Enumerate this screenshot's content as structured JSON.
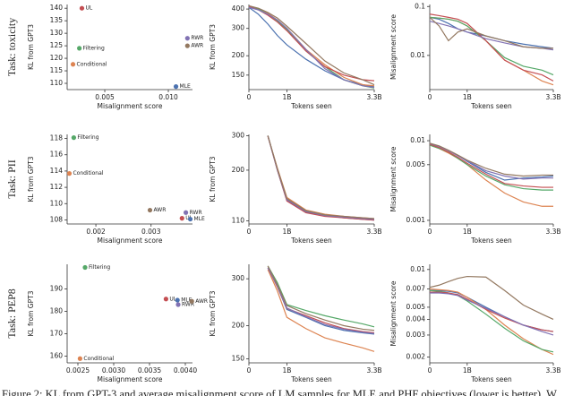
{
  "row_labels": [
    "Task: toxicity",
    "Task: PII",
    "Task: PEP8"
  ],
  "caption": "Figure 2: KL from GPT-3 and average misalignment score of LM samples for MLE and PHF objectives (lower is better). W",
  "chart_data": [
    {
      "type": "scatter",
      "xlabel": "Misalignment score",
      "ylabel": "KL from GPT3",
      "xlim": [
        0.00204,
        0.0119
      ],
      "ylim": [
        107.5,
        141.5
      ],
      "xticks": [
        0.005,
        {
          "value": 0.01,
          "label": "0.010"
        }
      ],
      "yticks": [
        110,
        115,
        120,
        125,
        130,
        135,
        140
      ],
      "series": [
        {
          "name": "UL",
          "color": "#c44e52",
          "x": [
            0.0032
          ],
          "values": [
            140
          ]
        },
        {
          "name": "Filtering",
          "color": "#55a868",
          "x": [
            0.003
          ],
          "values": [
            124
          ]
        },
        {
          "name": "Conditional",
          "color": "#dd8452",
          "x": [
            0.0025
          ],
          "values": [
            117.6
          ]
        },
        {
          "name": "RWR",
          "color": "#8172b3",
          "x": [
            0.0115
          ],
          "values": [
            128
          ]
        },
        {
          "name": "AWR",
          "color": "#937860",
          "x": [
            0.0115
          ],
          "values": [
            125
          ]
        },
        {
          "name": "MLE",
          "color": "#4c72b0",
          "x": [
            0.0106
          ],
          "values": [
            108.7
          ]
        }
      ]
    },
    {
      "type": "line",
      "xlabel": "Tokens seen",
      "ylabel": "KL from GPT3",
      "log_y": true,
      "x": [
        0,
        0.25,
        0.5,
        0.75,
        1,
        1.5,
        2,
        2.5,
        3,
        3.3
      ],
      "xlim": [
        0,
        3.3
      ],
      "ylim": [
        121,
        428
      ],
      "xticks": [
        0,
        {
          "value": 1,
          "label": "1B"
        },
        {
          "value": 3.3,
          "label": "3.3B"
        }
      ],
      "yticks": [
        150,
        200,
        300,
        400
      ],
      "series": [
        {
          "color": "#4c72b0",
          "values": [
            410,
            370,
            320,
            270,
            235,
            190,
            160,
            140,
            130,
            126
          ]
        },
        {
          "color": "#dd8452",
          "values": [
            415,
            400,
            375,
            340,
            300,
            220,
            175,
            145,
            130,
            128
          ]
        },
        {
          "color": "#55a868",
          "values": [
            415,
            400,
            370,
            335,
            295,
            215,
            170,
            140,
            128,
            124
          ]
        },
        {
          "color": "#c44e52",
          "values": [
            415,
            395,
            365,
            330,
            290,
            215,
            170,
            150,
            140,
            138
          ]
        },
        {
          "color": "#8172b3",
          "values": [
            410,
            395,
            370,
            340,
            300,
            220,
            165,
            140,
            128,
            125
          ]
        },
        {
          "color": "#937860",
          "values": [
            420,
            405,
            380,
            350,
            310,
            240,
            185,
            155,
            140,
            130
          ]
        }
      ]
    },
    {
      "type": "line",
      "xlabel": "Tokens seen",
      "ylabel": "Misalignment score",
      "log_y": true,
      "x": [
        0,
        0.25,
        0.5,
        0.75,
        1,
        1.5,
        2,
        2.5,
        3,
        3.3
      ],
      "xlim": [
        0,
        3.3
      ],
      "ylim": [
        0.002,
        0.11
      ],
      "xticks": [
        0,
        {
          "value": 1,
          "label": "1B"
        },
        {
          "value": 3.3,
          "label": "3.3B"
        }
      ],
      "yticks": [
        0.1,
        0.01
      ],
      "series": [
        {
          "color": "#4c72b0",
          "values": [
            0.06,
            0.055,
            0.045,
            0.035,
            0.03,
            0.025,
            0.02,
            0.017,
            0.015,
            0.014
          ]
        },
        {
          "color": "#dd8452",
          "values": [
            0.06,
            0.058,
            0.055,
            0.05,
            0.04,
            0.02,
            0.008,
            0.005,
            0.003,
            0.0025
          ]
        },
        {
          "color": "#55a868",
          "values": [
            0.06,
            0.058,
            0.055,
            0.05,
            0.04,
            0.02,
            0.009,
            0.006,
            0.005,
            0.004
          ]
        },
        {
          "color": "#c44e52",
          "values": [
            0.07,
            0.065,
            0.06,
            0.055,
            0.045,
            0.02,
            0.008,
            0.005,
            0.004,
            0.003
          ]
        },
        {
          "color": "#8172b3",
          "values": [
            0.05,
            0.045,
            0.04,
            0.035,
            0.03,
            0.022,
            0.018,
            0.015,
            0.014,
            0.013
          ]
        },
        {
          "color": "#937860",
          "values": [
            0.06,
            0.04,
            0.02,
            0.03,
            0.035,
            0.025,
            0.02,
            0.015,
            0.014,
            0.014
          ]
        }
      ]
    },
    {
      "type": "scatter",
      "xlabel": "Misalignment score",
      "ylabel": "KL from GPT3",
      "xlim": [
        0.00148,
        0.00375
      ],
      "ylim": [
        107.5,
        118.5
      ],
      "xticks": [
        0.002,
        0.003
      ],
      "yticks": [
        108,
        110,
        112,
        114,
        116,
        118
      ],
      "series": [
        {
          "name": "Filtering",
          "color": "#55a868",
          "x": [
            0.0016
          ],
          "values": [
            118.1
          ]
        },
        {
          "name": "Conditional",
          "color": "#dd8452",
          "x": [
            0.00152
          ],
          "values": [
            113.7
          ]
        },
        {
          "name": "AWR",
          "color": "#937860",
          "x": [
            0.00298
          ],
          "values": [
            109.2
          ]
        },
        {
          "name": "RWR",
          "color": "#8172b3",
          "x": [
            0.00363
          ],
          "values": [
            108.9
          ]
        },
        {
          "name": "UL",
          "color": "#c44e52",
          "x": [
            0.00356
          ],
          "values": [
            108.2
          ]
        },
        {
          "name": "MLE",
          "color": "#4c72b0",
          "x": [
            0.00371
          ],
          "values": [
            108.1
          ]
        }
      ]
    },
    {
      "type": "line",
      "xlabel": "Tokens seen",
      "ylabel": "KL from GPT3",
      "log_y": true,
      "x": [
        0,
        0.25,
        0.5,
        0.75,
        1,
        1.5,
        2,
        2.5,
        3,
        3.3
      ],
      "xlim": [
        0,
        3.3
      ],
      "ylim": [
        106,
        305
      ],
      "xticks": [
        0,
        {
          "value": 1,
          "label": "1B"
        },
        {
          "value": 3.3,
          "label": "3.3B"
        }
      ],
      "yticks": [
        110,
        200,
        300
      ],
      "series": [
        {
          "color": "#4c72b0",
          "values": [
            null,
            null,
            300,
            200,
            140,
            122,
            117,
            114,
            112,
            111
          ]
        },
        {
          "color": "#dd8452",
          "values": [
            null,
            null,
            298,
            205,
            145,
            125,
            119,
            116,
            114,
            113
          ]
        },
        {
          "color": "#55a868",
          "values": [
            null,
            null,
            300,
            202,
            142,
            124,
            118,
            115,
            113,
            112
          ]
        },
        {
          "color": "#c44e52",
          "values": [
            null,
            null,
            299,
            200,
            139,
            121,
            116,
            114,
            112,
            111
          ]
        },
        {
          "color": "#8172b3",
          "values": [
            null,
            null,
            300,
            201,
            141,
            123,
            117,
            115,
            113,
            112
          ]
        },
        {
          "color": "#937860",
          "values": [
            null,
            null,
            301,
            203,
            143,
            124,
            118,
            116,
            114,
            113
          ]
        }
      ]
    },
    {
      "type": "line",
      "xlabel": "Tokens seen",
      "ylabel": "Misalignment score",
      "log_y": true,
      "x": [
        0,
        0.25,
        0.5,
        0.75,
        1,
        1.5,
        2,
        2.5,
        3,
        3.3
      ],
      "xlim": [
        0,
        3.3
      ],
      "ylim": [
        0.0009,
        0.012
      ],
      "xticks": [
        0,
        {
          "value": 1,
          "label": "1B"
        },
        {
          "value": 3.3,
          "label": "3.3B"
        }
      ],
      "yticks": [
        0.001,
        0.005,
        0.01
      ],
      "series": [
        {
          "color": "#4c72b0",
          "values": [
            0.0092,
            0.0085,
            0.0075,
            0.0065,
            0.0055,
            0.004,
            0.0032,
            0.0034,
            0.0035,
            0.0036
          ]
        },
        {
          "color": "#dd8452",
          "values": [
            0.0088,
            0.008,
            0.007,
            0.006,
            0.005,
            0.0032,
            0.0022,
            0.0017,
            0.0015,
            0.0015
          ]
        },
        {
          "color": "#55a868",
          "values": [
            0.0088,
            0.008,
            0.0072,
            0.006,
            0.005,
            0.0036,
            0.0028,
            0.0025,
            0.0024,
            0.0024
          ]
        },
        {
          "color": "#c44e52",
          "values": [
            0.009,
            0.0082,
            0.0072,
            0.0062,
            0.0052,
            0.0038,
            0.0029,
            0.0027,
            0.0026,
            0.0026
          ]
        },
        {
          "color": "#8172b3",
          "values": [
            0.0092,
            0.0085,
            0.0075,
            0.0065,
            0.0056,
            0.0042,
            0.0036,
            0.0033,
            0.0034,
            0.0034
          ]
        },
        {
          "color": "#937860",
          "values": [
            0.0093,
            0.0086,
            0.0076,
            0.0066,
            0.0057,
            0.0045,
            0.0038,
            0.0036,
            0.0037,
            0.0037
          ]
        }
      ]
    },
    {
      "type": "scatter",
      "xlabel": "Misalignment score",
      "ylabel": "KL from GPT3",
      "xlim": [
        0.00235,
        0.0041
      ],
      "ylim": [
        157,
        201
      ],
      "xticks": [
        0.0025,
        {
          "value": 0.003,
          "label": "0.0030"
        },
        0.0035,
        {
          "value": 0.004,
          "label": "0.0040"
        }
      ],
      "yticks": [
        160,
        170,
        180,
        190
      ],
      "series": [
        {
          "name": "Filtering",
          "color": "#55a868",
          "x": [
            0.0026
          ],
          "values": [
            199.6
          ]
        },
        {
          "name": "Conditional",
          "color": "#dd8452",
          "x": [
            0.00253
          ],
          "values": [
            158.9
          ]
        },
        {
          "name": "UL",
          "color": "#c44e52",
          "x": [
            0.00373
          ],
          "values": [
            185.5
          ]
        },
        {
          "name": "MLE",
          "color": "#4c72b0",
          "x": [
            0.00389
          ],
          "values": [
            185
          ]
        },
        {
          "name": "RWR",
          "color": "#8172b3",
          "x": [
            0.0039
          ],
          "values": [
            183
          ]
        },
        {
          "name": "AWR",
          "color": "#937860",
          "x": [
            0.00409
          ],
          "values": [
            184.5
          ]
        }
      ]
    },
    {
      "type": "line",
      "xlabel": "Tokens seen",
      "ylabel": "KL from GPT3",
      "log_y": true,
      "x": [
        0,
        0.25,
        0.5,
        0.75,
        1,
        1.5,
        2,
        2.5,
        3,
        3.3
      ],
      "xlim": [
        0,
        3.3
      ],
      "ylim": [
        145,
        340
      ],
      "xticks": [
        0,
        {
          "value": 1,
          "label": "1B"
        },
        {
          "value": 3.3,
          "label": "3.3B"
        }
      ],
      "yticks": [
        150,
        200,
        300
      ],
      "series": [
        {
          "color": "#4c72b0",
          "values": [
            null,
            null,
            330,
            280,
            230,
            215,
            200,
            192,
            188,
            186
          ]
        },
        {
          "color": "#dd8452",
          "values": [
            null,
            null,
            325,
            270,
            215,
            195,
            180,
            172,
            165,
            160
          ]
        },
        {
          "color": "#55a868",
          "values": [
            null,
            null,
            335,
            290,
            240,
            228,
            218,
            210,
            203,
            198
          ]
        },
        {
          "color": "#c44e52",
          "values": [
            null,
            null,
            330,
            280,
            232,
            218,
            205,
            195,
            190,
            188
          ]
        },
        {
          "color": "#8172b3",
          "values": [
            null,
            null,
            330,
            282,
            233,
            216,
            202,
            194,
            189,
            187
          ]
        },
        {
          "color": "#937860",
          "values": [
            null,
            null,
            335,
            285,
            238,
            222,
            210,
            200,
            194,
            192
          ]
        }
      ]
    },
    {
      "type": "line",
      "xlabel": "Tokens seen",
      "ylabel": "Misalignment score",
      "log_y": true,
      "x": [
        0,
        0.25,
        0.5,
        0.75,
        1,
        1.5,
        2,
        2.5,
        3,
        3.3
      ],
      "xlim": [
        0,
        3.3
      ],
      "ylim": [
        0.0018,
        0.011
      ],
      "xticks": [
        0,
        {
          "value": 1,
          "label": "1B"
        },
        {
          "value": 3.3,
          "label": "3.3B"
        }
      ],
      "yticks": [
        0.002,
        0.003,
        0.004,
        0.005,
        0.007,
        0.01
      ],
      "series": [
        {
          "color": "#4c72b0",
          "values": [
            0.0068,
            0.0068,
            0.0067,
            0.0065,
            0.006,
            0.005,
            0.0042,
            0.0036,
            0.0033,
            0.0032
          ]
        },
        {
          "color": "#dd8452",
          "values": [
            0.007,
            0.0069,
            0.0068,
            0.0066,
            0.006,
            0.0048,
            0.0036,
            0.0028,
            0.0023,
            0.0021
          ]
        },
        {
          "color": "#55a868",
          "values": [
            0.0068,
            0.0067,
            0.0065,
            0.0062,
            0.0056,
            0.0044,
            0.0034,
            0.0027,
            0.0023,
            0.0022
          ]
        },
        {
          "color": "#c44e52",
          "values": [
            0.0066,
            0.0066,
            0.0065,
            0.0063,
            0.0058,
            0.0048,
            0.0041,
            0.0036,
            0.0033,
            0.0032
          ]
        },
        {
          "color": "#8172b3",
          "values": [
            0.0065,
            0.0065,
            0.0064,
            0.0062,
            0.0057,
            0.0049,
            0.0042,
            0.0036,
            0.0032,
            0.003
          ]
        },
        {
          "color": "#937860",
          "values": [
            0.0072,
            0.0075,
            0.008,
            0.0085,
            0.0088,
            0.0087,
            0.0068,
            0.0052,
            0.0044,
            0.004
          ]
        }
      ]
    }
  ]
}
